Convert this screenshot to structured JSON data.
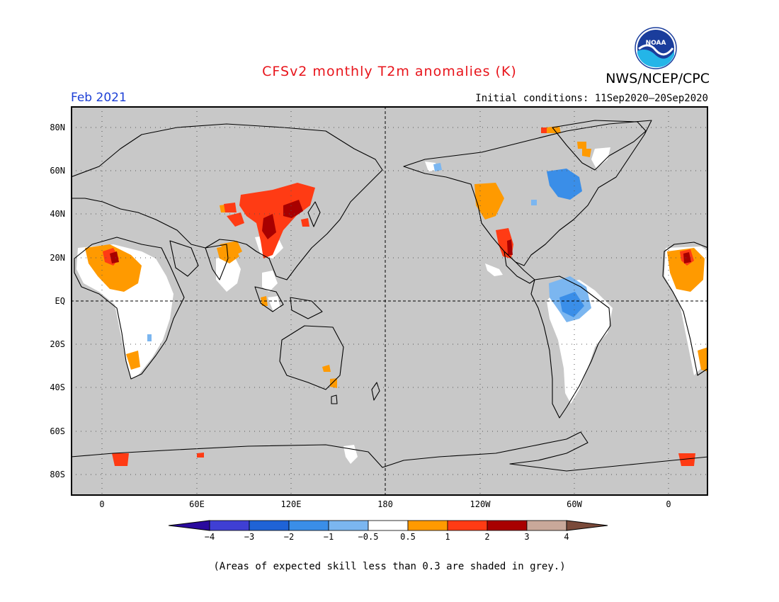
{
  "title": "CFSv2 monthly T2m anomalies (K)",
  "agency": "NWS/NCEP/CPC",
  "logo_text": "NOAA",
  "month": "Feb 2021",
  "initial_conditions": "Initial conditions: 11Sep2020—20Sep2020",
  "lat_labels": [
    "80N",
    "60N",
    "40N",
    "20N",
    "EQ",
    "20S",
    "40S",
    "60S",
    "80S"
  ],
  "lon_labels": [
    "0",
    "60E",
    "120E",
    "180",
    "120W",
    "60W",
    "0"
  ],
  "colorbar": {
    "labels": [
      "−4",
      "−3",
      "−2",
      "−1",
      "−0.5",
      "0.5",
      "1",
      "2",
      "3",
      "4"
    ],
    "colors": [
      "#2a0a9e",
      "#3f3fd4",
      "#1f63d6",
      "#3a8ee8",
      "#7bb6f0",
      "#ffffff",
      "#ff9a00",
      "#ff3b14",
      "#a80000",
      "#c9a89a",
      "#7a4a3a"
    ]
  },
  "skill_note": "(Areas of expected skill less than 0.3 are shaded in grey.)",
  "map_colors": {
    "ocean": "#c8c8c8",
    "low_skill": "#c8c8c8",
    "neutral": "#ffffff",
    "warm_05_1": "#ff9a00",
    "warm_1_2": "#ff3b14",
    "warm_2_3": "#a80000",
    "cool_1_05": "#7bb6f0",
    "cool_2_1": "#3a8ee8"
  }
}
